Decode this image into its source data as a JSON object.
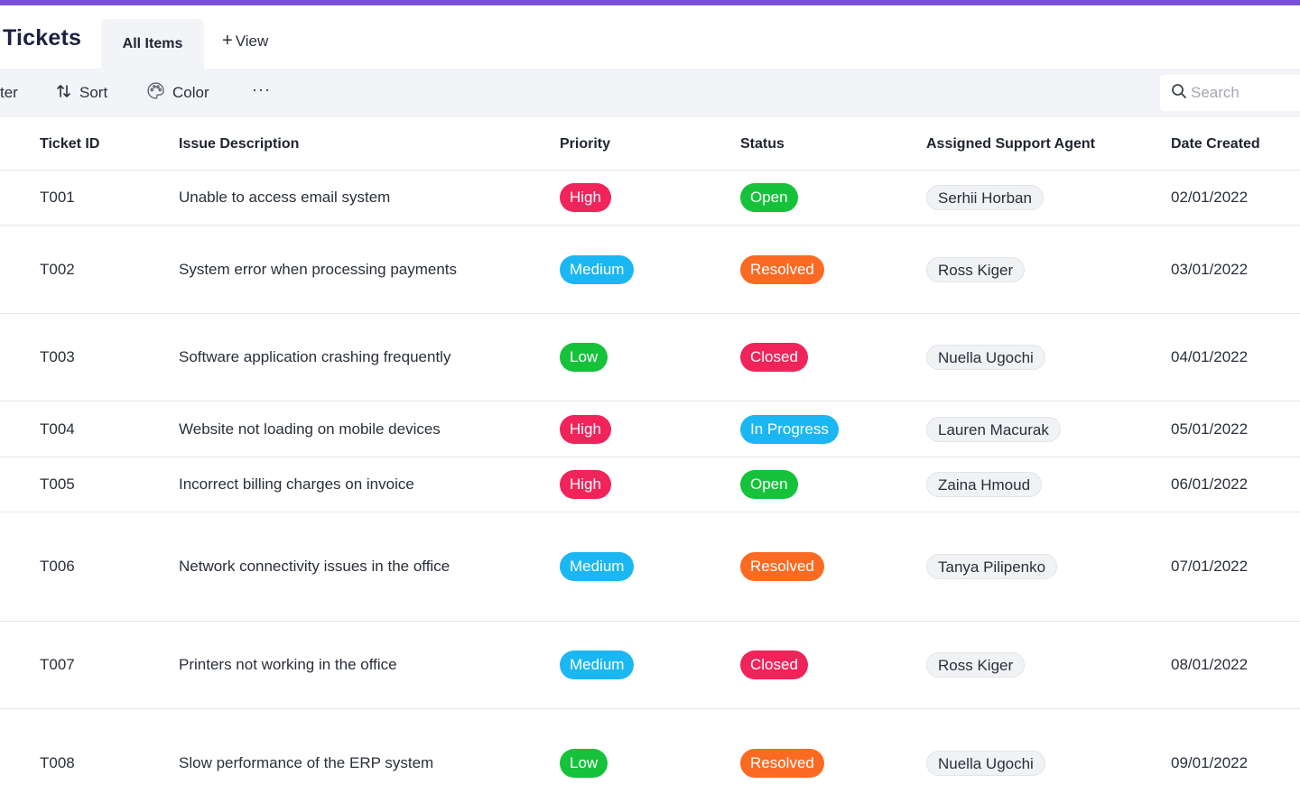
{
  "colors": {
    "accent": "#7b4fd8",
    "priority": {
      "High": "#f0245a",
      "Medium": "#1ab7f2",
      "Low": "#16c23a"
    },
    "status": {
      "Open": "#16c23a",
      "Resolved": "#fb6a23",
      "Closed": "#f0245a",
      "In Progress": "#1ab7f2"
    }
  },
  "header": {
    "title": "Tickets",
    "tabs": [
      {
        "label": "All Items",
        "active": true
      }
    ],
    "add_view": {
      "icon": "plus-icon",
      "label": "View"
    }
  },
  "toolbar": {
    "filter_label": "ter",
    "sort": {
      "icon": "sort-icon",
      "label": "Sort"
    },
    "color": {
      "icon": "palette-icon",
      "label": "Color"
    },
    "more": {
      "icon": "more-icon",
      "label": "···"
    },
    "search": {
      "icon": "search-icon",
      "placeholder": "Search",
      "value": ""
    }
  },
  "table": {
    "columns": [
      "Ticket ID",
      "Issue Description",
      "Priority",
      "Status",
      "Assigned Support Agent",
      "Date Created"
    ],
    "rows": [
      {
        "id": "T001",
        "description": "Unable to access email system",
        "priority": "High",
        "status": "Open",
        "agent": "Serhii Horban",
        "date": "02/01/2022"
      },
      {
        "id": "T002",
        "description": "System error when processing payments",
        "priority": "Medium",
        "status": "Resolved",
        "agent": "Ross Kiger",
        "date": "03/01/2022"
      },
      {
        "id": "T003",
        "description": "Software application crashing frequently",
        "priority": "Low",
        "status": "Closed",
        "agent": "Nuella Ugochi",
        "date": "04/01/2022"
      },
      {
        "id": "T004",
        "description": "Website not loading on mobile devices",
        "priority": "High",
        "status": "In Progress",
        "agent": "Lauren Macurak",
        "date": "05/01/2022"
      },
      {
        "id": "T005",
        "description": "Incorrect billing charges on invoice",
        "priority": "High",
        "status": "Open",
        "agent": "Zaina Hmoud",
        "date": "06/01/2022"
      },
      {
        "id": "T006",
        "description": "Network connectivity issues in the office",
        "priority": "Medium",
        "status": "Resolved",
        "agent": "Tanya Pilipenko",
        "date": "07/01/2022"
      },
      {
        "id": "T007",
        "description": "Printers not working in the office",
        "priority": "Medium",
        "status": "Closed",
        "agent": "Ross Kiger",
        "date": "08/01/2022"
      },
      {
        "id": "T008",
        "description": "Slow performance of the ERP system",
        "priority": "Low",
        "status": "Resolved",
        "agent": "Nuella Ugochi",
        "date": "09/01/2022"
      }
    ]
  }
}
